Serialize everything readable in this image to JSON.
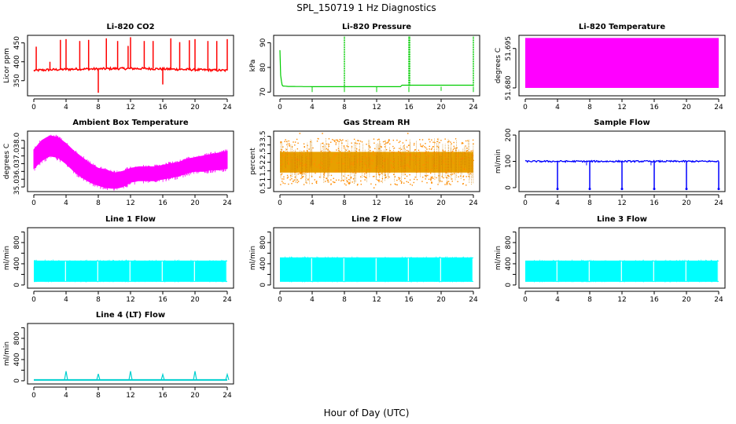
{
  "figure": {
    "title": "SPL_150719  1 Hz Diagnostics",
    "xlabel": "Hour of Day (UTC)"
  },
  "chart_data": [
    {
      "id": "co2",
      "type": "line",
      "title": "Li-820 CO2",
      "ylabel": "Licor ppm",
      "color": "#ff0000",
      "xlim": [
        0,
        24
      ],
      "ylim": [
        310,
        470
      ],
      "xticks": [
        0,
        4,
        8,
        12,
        16,
        20,
        24
      ],
      "yticks": [
        350,
        400,
        450
      ],
      "baseline": {
        "x": [
          0,
          2,
          4,
          6,
          8,
          10,
          12,
          14,
          16,
          18,
          20,
          22,
          24
        ],
        "y": [
          377,
          379,
          380,
          381,
          381,
          382,
          382,
          382,
          381,
          380,
          379,
          378,
          377
        ]
      },
      "noise": 3,
      "spikes": {
        "x": [
          0.3,
          2,
          3.3,
          4,
          5.7,
          6.8,
          8,
          9,
          10.4,
          11.7,
          12,
          13.7,
          14.8,
          16,
          17,
          18.1,
          19.3,
          20,
          21.6,
          22.7,
          24
        ],
        "y": [
          440,
          400,
          458,
          460,
          455,
          458,
          318,
          462,
          455,
          442,
          465,
          455,
          455,
          340,
          462,
          452,
          457,
          460,
          455,
          455,
          460
        ]
      }
    },
    {
      "id": "pressure",
      "type": "line",
      "title": "Li-820 Pressure",
      "ylabel": "kPa",
      "color": "#00cc00",
      "xlim": [
        0,
        24
      ],
      "ylim": [
        68.5,
        93
      ],
      "xticks": [
        0,
        4,
        8,
        12,
        16,
        20,
        24
      ],
      "yticks": [
        70,
        80,
        90
      ],
      "baseline": {
        "x": [
          0,
          0.1,
          0.3,
          1,
          4,
          8,
          12,
          15,
          15.1,
          20,
          24
        ],
        "y": [
          87,
          76,
          72.5,
          72.3,
          72.2,
          72.2,
          72.2,
          72.2,
          72.8,
          72.8,
          72.8
        ]
      },
      "spikes": {
        "x": [
          8,
          16,
          16.1,
          24
        ],
        "y": [
          93,
          93,
          93,
          93
        ]
      },
      "dips": {
        "x": [
          4,
          8,
          12,
          16,
          20,
          24
        ],
        "y": [
          70,
          70,
          70,
          70,
          70.5,
          70
        ]
      }
    },
    {
      "id": "temperature",
      "type": "area",
      "title": "Li-820 Temperature",
      "ylabel": "degrees C",
      "color": "#ff00ff",
      "xlim": [
        0,
        24
      ],
      "ylim": [
        51.677,
        51.7
      ],
      "xticks": [
        0,
        4,
        8,
        12,
        16,
        20,
        24
      ],
      "yticks": [
        51.68,
        51.695
      ],
      "yticklabels": [
        "51.680",
        "51.695"
      ],
      "band": [
        51.68,
        51.699
      ]
    },
    {
      "id": "box_temp",
      "type": "line",
      "title": "Ambient Box Temperature",
      "ylabel": "degrees C",
      "color": "#ff00ff",
      "xlim": [
        0,
        24
      ],
      "ylim": [
        34.7,
        38.6
      ],
      "xticks": [
        0,
        4,
        8,
        12,
        16,
        20,
        24
      ],
      "yticks": [
        35.0,
        35.5,
        36.0,
        36.5,
        37.0,
        37.5,
        38.0
      ],
      "yticklabels": [
        "35.0",
        "",
        "36.0",
        "",
        "37.0",
        "",
        "38.0"
      ],
      "upper": {
        "x": [
          0,
          1,
          2,
          3,
          4,
          5,
          6,
          7,
          8,
          9,
          10,
          11,
          12,
          13,
          14,
          15,
          16,
          17,
          18,
          19,
          20,
          21,
          22,
          23,
          24
        ],
        "y": [
          37.4,
          38.0,
          38.3,
          38.2,
          37.8,
          37.3,
          36.9,
          36.5,
          36.2,
          36.1,
          35.9,
          36.0,
          36.2,
          36.3,
          36.3,
          36.3,
          36.4,
          36.5,
          36.6,
          36.8,
          36.9,
          37.0,
          37.1,
          37.2,
          37.3
        ]
      },
      "lower": {
        "x": [
          0,
          1,
          2,
          3,
          4,
          5,
          6,
          7,
          8,
          9,
          10,
          11,
          12,
          13,
          14,
          15,
          16,
          17,
          18,
          19,
          20,
          21,
          22,
          23,
          24
        ],
        "y": [
          36.2,
          36.7,
          37.0,
          36.9,
          36.5,
          36.0,
          35.6,
          35.3,
          35.1,
          34.95,
          34.9,
          35.0,
          35.3,
          35.4,
          35.4,
          35.4,
          35.5,
          35.6,
          35.7,
          35.9,
          36.0,
          36.0,
          36.1,
          36.1,
          36.2
        ]
      }
    },
    {
      "id": "rh",
      "type": "scatter",
      "title": "Gas Stream RH",
      "ylabel": "percent",
      "color": "#ff8c00",
      "xlim": [
        0,
        24
      ],
      "ylim": [
        0.3,
        3.8
      ],
      "xticks": [
        0,
        4,
        8,
        12,
        16,
        20,
        24
      ],
      "yticks": [
        0.5,
        1.0,
        1.5,
        2.0,
        2.5,
        3.0,
        3.5
      ],
      "center": 2.0,
      "spread": [
        0.7,
        3.4
      ],
      "outliers": {
        "x": [
          2.4,
          5.2,
          11.6,
          15.8,
          18.6
        ],
        "y": [
          3.7,
          3.7,
          0.55,
          3.7,
          0.5
        ]
      }
    },
    {
      "id": "sample_flow",
      "type": "line",
      "title": "Sample Flow",
      "ylabel": "ml/min",
      "color": "#0000ff",
      "xlim": [
        0,
        24
      ],
      "ylim": [
        -15,
        215
      ],
      "xticks": [
        0,
        4,
        8,
        12,
        16,
        20,
        24
      ],
      "yticks": [
        0,
        100,
        200
      ],
      "baseline": {
        "x": [
          0,
          4,
          8,
          12,
          16,
          20,
          24
        ],
        "y": [
          100,
          100,
          100,
          100,
          100,
          100,
          100
        ]
      },
      "dips": {
        "x": [
          4,
          8,
          12,
          16,
          20,
          24
        ],
        "y": [
          -5,
          -5,
          -5,
          -5,
          -5,
          -5
        ]
      },
      "small_dips": {
        "x": [
          7.6,
          15.6
        ],
        "y": [
          85,
          85
        ]
      }
    },
    {
      "id": "line1",
      "type": "area",
      "title": "Line 1 Flow",
      "ylabel": "ml/min",
      "color": "#00ffff",
      "xlim": [
        0,
        24
      ],
      "ylim": [
        -60,
        1080
      ],
      "xticks": [
        0,
        4,
        8,
        12,
        16,
        20,
        24
      ],
      "yticks": [
        0,
        200,
        400,
        600,
        800,
        1000
      ],
      "yticklabels": [
        "0",
        "",
        "400",
        "",
        "800",
        ""
      ],
      "band": [
        60,
        460
      ],
      "gaps": [
        4,
        8,
        12,
        16,
        20,
        24
      ]
    },
    {
      "id": "line2",
      "type": "area",
      "title": "Line 2 Flow",
      "ylabel": "ml/min",
      "color": "#00ffff",
      "xlim": [
        0,
        24
      ],
      "ylim": [
        -60,
        1080
      ],
      "xticks": [
        0,
        4,
        8,
        12,
        16,
        20,
        24
      ],
      "yticks": [
        0,
        200,
        400,
        600,
        800,
        1000
      ],
      "yticklabels": [
        "0",
        "",
        "400",
        "",
        "800",
        ""
      ],
      "band": [
        60,
        520
      ],
      "gaps": [
        4,
        8,
        12,
        16,
        20,
        24
      ]
    },
    {
      "id": "line3",
      "type": "area",
      "title": "Line 3 Flow",
      "ylabel": "ml/min",
      "color": "#00ffff",
      "xlim": [
        0,
        24
      ],
      "ylim": [
        -60,
        1080
      ],
      "xticks": [
        0,
        4,
        8,
        12,
        16,
        20,
        24
      ],
      "yticks": [
        0,
        200,
        400,
        600,
        800,
        1000
      ],
      "yticklabels": [
        "0",
        "",
        "400",
        "",
        "800",
        ""
      ],
      "band": [
        60,
        460
      ],
      "gaps": [
        4,
        8,
        12,
        16,
        20,
        24
      ]
    },
    {
      "id": "line4",
      "type": "line",
      "title": "Line 4 (LT) Flow",
      "ylabel": "ml/min",
      "color": "#00d0d0",
      "xlim": [
        0,
        24
      ],
      "ylim": [
        -60,
        1080
      ],
      "xticks": [
        0,
        4,
        8,
        12,
        16,
        20,
        24
      ],
      "yticks": [
        0,
        200,
        400,
        600,
        800,
        1000
      ],
      "yticklabels": [
        "0",
        "",
        "400",
        "",
        "800",
        ""
      ],
      "baseline": {
        "x": [
          0,
          24
        ],
        "y": [
          15,
          15
        ]
      },
      "spikes": {
        "x": [
          4,
          8,
          12,
          16,
          20,
          24
        ],
        "y": [
          180,
          130,
          180,
          120,
          180,
          120
        ]
      }
    }
  ]
}
